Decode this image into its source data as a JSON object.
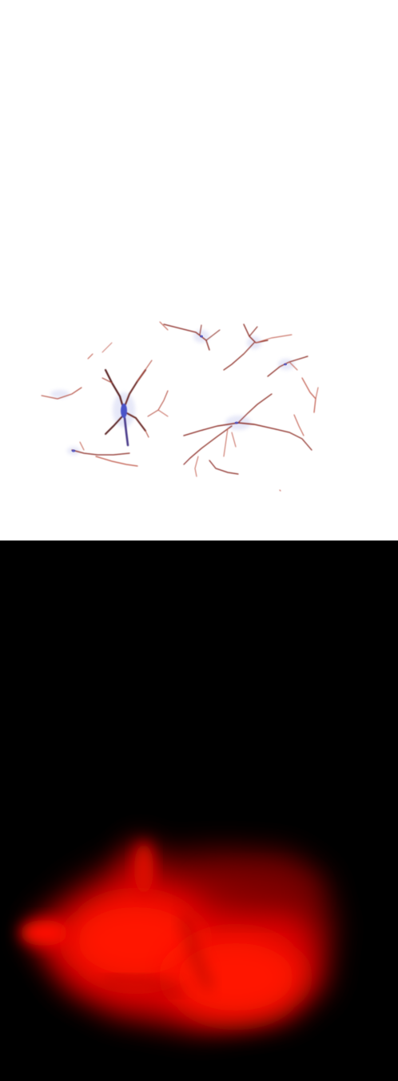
{
  "panels": [
    {
      "name": "stained-cells-panel",
      "background": "#ffffff",
      "stain_colors": {
        "process": "#8a2a22",
        "process_light": "#c0584a",
        "nucleus": "#4a52c8",
        "halo": "#c9cdf0"
      }
    },
    {
      "name": "red-fluorescence-panel",
      "background": "#000000",
      "glow_colors": {
        "bright": "#ff1200",
        "mid": "#d00000",
        "dim": "#6a0000"
      }
    }
  ]
}
